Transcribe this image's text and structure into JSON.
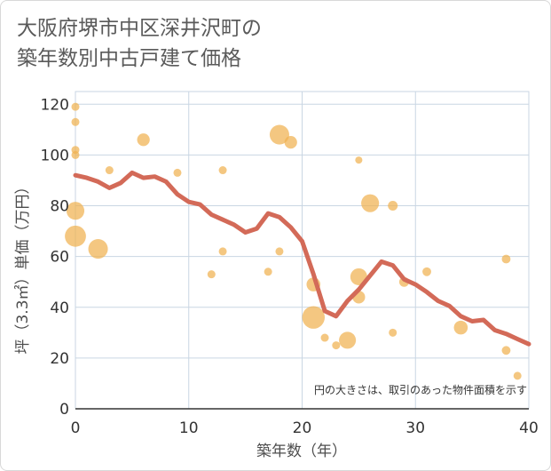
{
  "chart_data": {
    "type": "scatter",
    "title_lines": [
      "大阪府堺市中区深井沢町の",
      "築年数別中古戸建て価格"
    ],
    "xlabel": "築年数（年）",
    "ylabel": "坪（3.3㎡）単価（万円）",
    "xlim": [
      0,
      40
    ],
    "ylim": [
      0,
      125
    ],
    "x_ticks": [
      "0",
      "10",
      "20",
      "30",
      "40"
    ],
    "x_tick_values": [
      0,
      10,
      20,
      30,
      40
    ],
    "y_ticks": [
      "0",
      "20",
      "40",
      "60",
      "80",
      "100",
      "120"
    ],
    "y_tick_values": [
      0,
      20,
      40,
      60,
      80,
      100,
      120
    ],
    "grid": true,
    "note": "円の大きさは、取引のあった物件面積を示す",
    "colors": {
      "bubble": "#f0b150",
      "line": "#d36a58",
      "grid": "#c9d6e3"
    },
    "bubbles": [
      {
        "x": 0,
        "y": 119,
        "size": 1
      },
      {
        "x": 0,
        "y": 113,
        "size": 1
      },
      {
        "x": 0,
        "y": 102,
        "size": 1
      },
      {
        "x": 0,
        "y": 100,
        "size": 1
      },
      {
        "x": 0,
        "y": 78,
        "size": 5
      },
      {
        "x": 0,
        "y": 68,
        "size": 7
      },
      {
        "x": 2,
        "y": 63,
        "size": 6
      },
      {
        "x": 3,
        "y": 94,
        "size": 1
      },
      {
        "x": 6,
        "y": 106,
        "size": 2.5
      },
      {
        "x": 9,
        "y": 93,
        "size": 1
      },
      {
        "x": 12,
        "y": 53,
        "size": 1
      },
      {
        "x": 13,
        "y": 94,
        "size": 1
      },
      {
        "x": 13,
        "y": 62,
        "size": 1
      },
      {
        "x": 17,
        "y": 54,
        "size": 1
      },
      {
        "x": 18,
        "y": 108,
        "size": 6
      },
      {
        "x": 18,
        "y": 62,
        "size": 1
      },
      {
        "x": 19,
        "y": 105,
        "size": 2.5
      },
      {
        "x": 21,
        "y": 49,
        "size": 3
      },
      {
        "x": 21,
        "y": 36,
        "size": 8
      },
      {
        "x": 22,
        "y": 28,
        "size": 1
      },
      {
        "x": 23,
        "y": 25,
        "size": 1
      },
      {
        "x": 24,
        "y": 27,
        "size": 4.5
      },
      {
        "x": 25,
        "y": 98,
        "size": 0.8
      },
      {
        "x": 25,
        "y": 52,
        "size": 4.5
      },
      {
        "x": 25,
        "y": 44,
        "size": 2.5
      },
      {
        "x": 26,
        "y": 81,
        "size": 5
      },
      {
        "x": 28,
        "y": 80,
        "size": 1.5
      },
      {
        "x": 28,
        "y": 30,
        "size": 1
      },
      {
        "x": 29,
        "y": 50,
        "size": 1.5
      },
      {
        "x": 31,
        "y": 54,
        "size": 1.2
      },
      {
        "x": 34,
        "y": 32,
        "size": 3
      },
      {
        "x": 38,
        "y": 59,
        "size": 1.2
      },
      {
        "x": 38,
        "y": 23,
        "size": 1.2
      },
      {
        "x": 39,
        "y": 13,
        "size": 1
      }
    ],
    "trend": [
      {
        "x": 0,
        "y": 92
      },
      {
        "x": 1,
        "y": 91
      },
      {
        "x": 2,
        "y": 89.5
      },
      {
        "x": 3,
        "y": 87
      },
      {
        "x": 4,
        "y": 89
      },
      {
        "x": 5,
        "y": 93
      },
      {
        "x": 6,
        "y": 91
      },
      {
        "x": 7,
        "y": 91.5
      },
      {
        "x": 8,
        "y": 89.5
      },
      {
        "x": 9,
        "y": 84.5
      },
      {
        "x": 10,
        "y": 81.5
      },
      {
        "x": 11,
        "y": 80.5
      },
      {
        "x": 12,
        "y": 76.5
      },
      {
        "x": 13,
        "y": 74.5
      },
      {
        "x": 14,
        "y": 72.5
      },
      {
        "x": 15,
        "y": 69.5
      },
      {
        "x": 16,
        "y": 71
      },
      {
        "x": 17,
        "y": 77
      },
      {
        "x": 18,
        "y": 75.5
      },
      {
        "x": 19,
        "y": 71.5
      },
      {
        "x": 20,
        "y": 66
      },
      {
        "x": 21,
        "y": 53
      },
      {
        "x": 22,
        "y": 38.5
      },
      {
        "x": 23,
        "y": 36.5
      },
      {
        "x": 24,
        "y": 42.5
      },
      {
        "x": 25,
        "y": 47
      },
      {
        "x": 26,
        "y": 52.5
      },
      {
        "x": 27,
        "y": 58
      },
      {
        "x": 28,
        "y": 56.5
      },
      {
        "x": 29,
        "y": 51
      },
      {
        "x": 30,
        "y": 49
      },
      {
        "x": 31,
        "y": 46
      },
      {
        "x": 32,
        "y": 42.5
      },
      {
        "x": 33,
        "y": 40.5
      },
      {
        "x": 34,
        "y": 36.5
      },
      {
        "x": 35,
        "y": 34.5
      },
      {
        "x": 36,
        "y": 35
      },
      {
        "x": 37,
        "y": 31
      },
      {
        "x": 38,
        "y": 29.5
      },
      {
        "x": 39,
        "y": 27.5
      },
      {
        "x": 40,
        "y": 25.5
      }
    ]
  }
}
